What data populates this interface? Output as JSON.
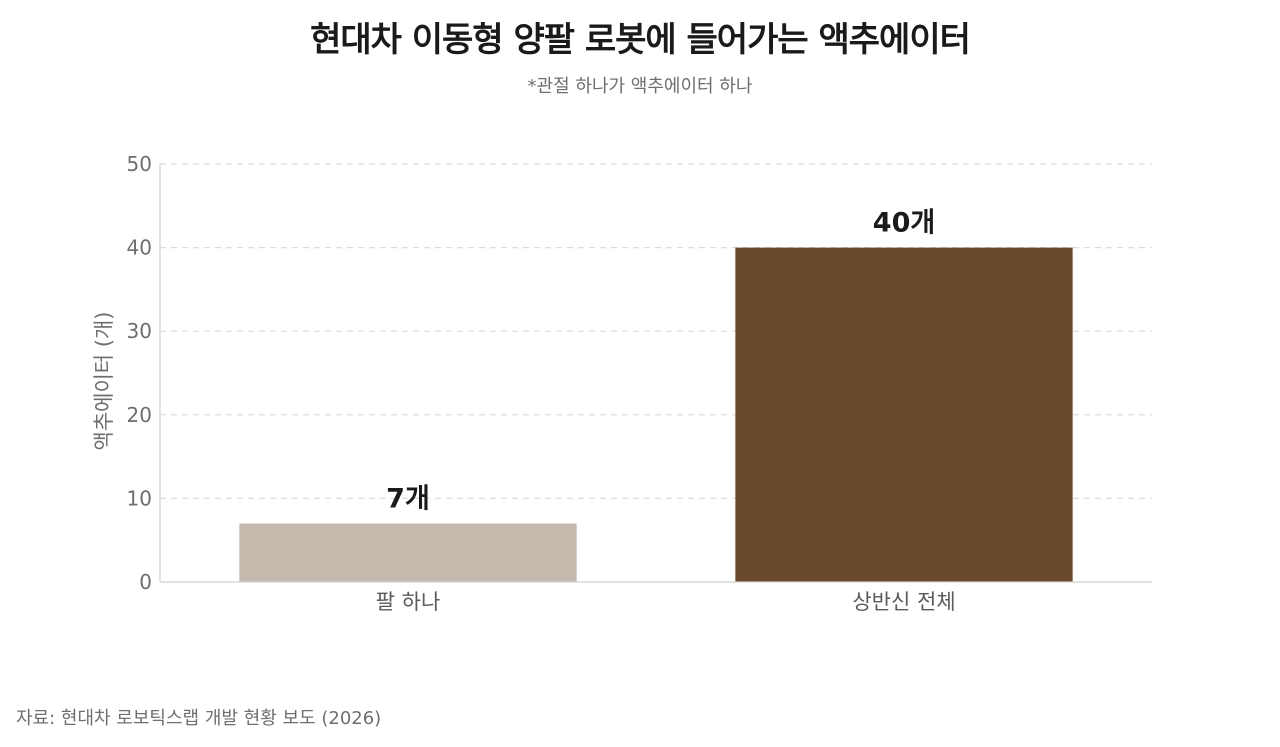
{
  "title": "현대차 이동형 양팔 로봇에 들어가는 액추에이터",
  "subtitle": "*관절 하나가 액추에이터 하나",
  "source": "자료: 현대차 로보틱스랩 개발 현황 보도 (2026)",
  "chart_data": {
    "type": "bar",
    "categories": [
      "팔 하나",
      "상반신 전체"
    ],
    "values": [
      7,
      40
    ],
    "value_labels": [
      "7개",
      "40개"
    ],
    "colors": [
      "#c5b8ac",
      "#6b4a2b"
    ],
    "ylabel": "액추에이터 (개)",
    "xlabel": "",
    "ylim": [
      0,
      50
    ],
    "yticks": [
      0,
      10,
      20,
      30,
      40,
      50
    ],
    "grid": true
  }
}
